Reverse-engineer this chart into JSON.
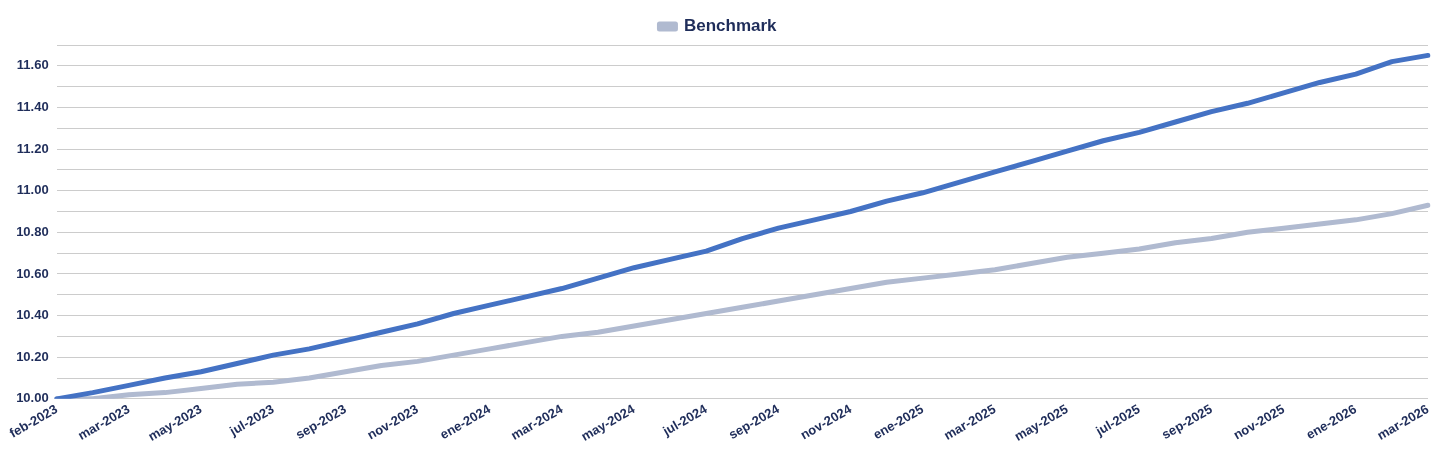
{
  "chart_data": {
    "type": "line",
    "categories": [
      "feb-2023",
      null,
      "mar-2023",
      null,
      "may-2023",
      null,
      "jul-2023",
      null,
      "sep-2023",
      null,
      "nov-2023",
      null,
      "ene-2024",
      null,
      "mar-2024",
      null,
      "may-2024",
      null,
      "jul-2024",
      null,
      "sep-2024",
      null,
      "nov-2024",
      null,
      "ene-2025",
      null,
      "mar-2025",
      null,
      "may-2025",
      null,
      "jul-2025",
      null,
      "sep-2025",
      null,
      "nov-2025",
      null,
      "ene-2026",
      null,
      "mar-2026"
    ],
    "series": [
      {
        "color": "#4472c4",
        "values": [
          10.0,
          10.03,
          10.065,
          10.1,
          10.13,
          10.17,
          10.21,
          10.24,
          10.28,
          10.32,
          10.36,
          10.41,
          10.45,
          10.49,
          10.53,
          10.58,
          10.63,
          10.67,
          10.71,
          10.77,
          10.82,
          10.86,
          10.9,
          10.95,
          10.99,
          11.04,
          11.09,
          11.14,
          11.19,
          11.24,
          11.28,
          11.33,
          11.38,
          11.42,
          11.47,
          11.52,
          11.56,
          11.62,
          11.65
        ]
      },
      {
        "name": "Benchmark",
        "color": "#b0bad0",
        "values": [
          10.0,
          10.0,
          10.02,
          10.03,
          10.05,
          10.07,
          10.08,
          10.1,
          10.13,
          10.16,
          10.18,
          10.21,
          10.24,
          10.27,
          10.3,
          10.32,
          10.35,
          10.38,
          10.41,
          10.44,
          10.47,
          10.5,
          10.53,
          10.56,
          10.58,
          10.6,
          10.62,
          10.65,
          10.68,
          10.7,
          10.72,
          10.75,
          10.77,
          10.8,
          10.82,
          10.84,
          10.86,
          10.89,
          10.93
        ]
      }
    ],
    "ylim": [
      10,
      11.7
    ],
    "yticks": [
      {
        "value": 10,
        "label": "10.00"
      },
      {
        "value": 10.1,
        "label": null
      },
      {
        "value": 10.2,
        "label": "10.20"
      },
      {
        "value": 10.3,
        "label": null
      },
      {
        "value": 10.4,
        "label": "10.40"
      },
      {
        "value": 10.5,
        "label": null
      },
      {
        "value": 10.6,
        "label": "10.60"
      },
      {
        "value": 10.7,
        "label": null
      },
      {
        "value": 10.8,
        "label": "10.80"
      },
      {
        "value": 10.9,
        "label": null
      },
      {
        "value": 11.0,
        "label": "11.00"
      },
      {
        "value": 11.1,
        "label": null
      },
      {
        "value": 11.2,
        "label": "11.20"
      },
      {
        "value": 11.3,
        "label": null
      },
      {
        "value": 11.4,
        "label": "11.40"
      },
      {
        "value": 11.5,
        "label": null
      },
      {
        "value": 11.6,
        "label": "11.60"
      },
      {
        "value": 11.7,
        "label": null
      }
    ],
    "grid": "y",
    "legend": "top",
    "marker": "none",
    "line_style": "solid"
  }
}
